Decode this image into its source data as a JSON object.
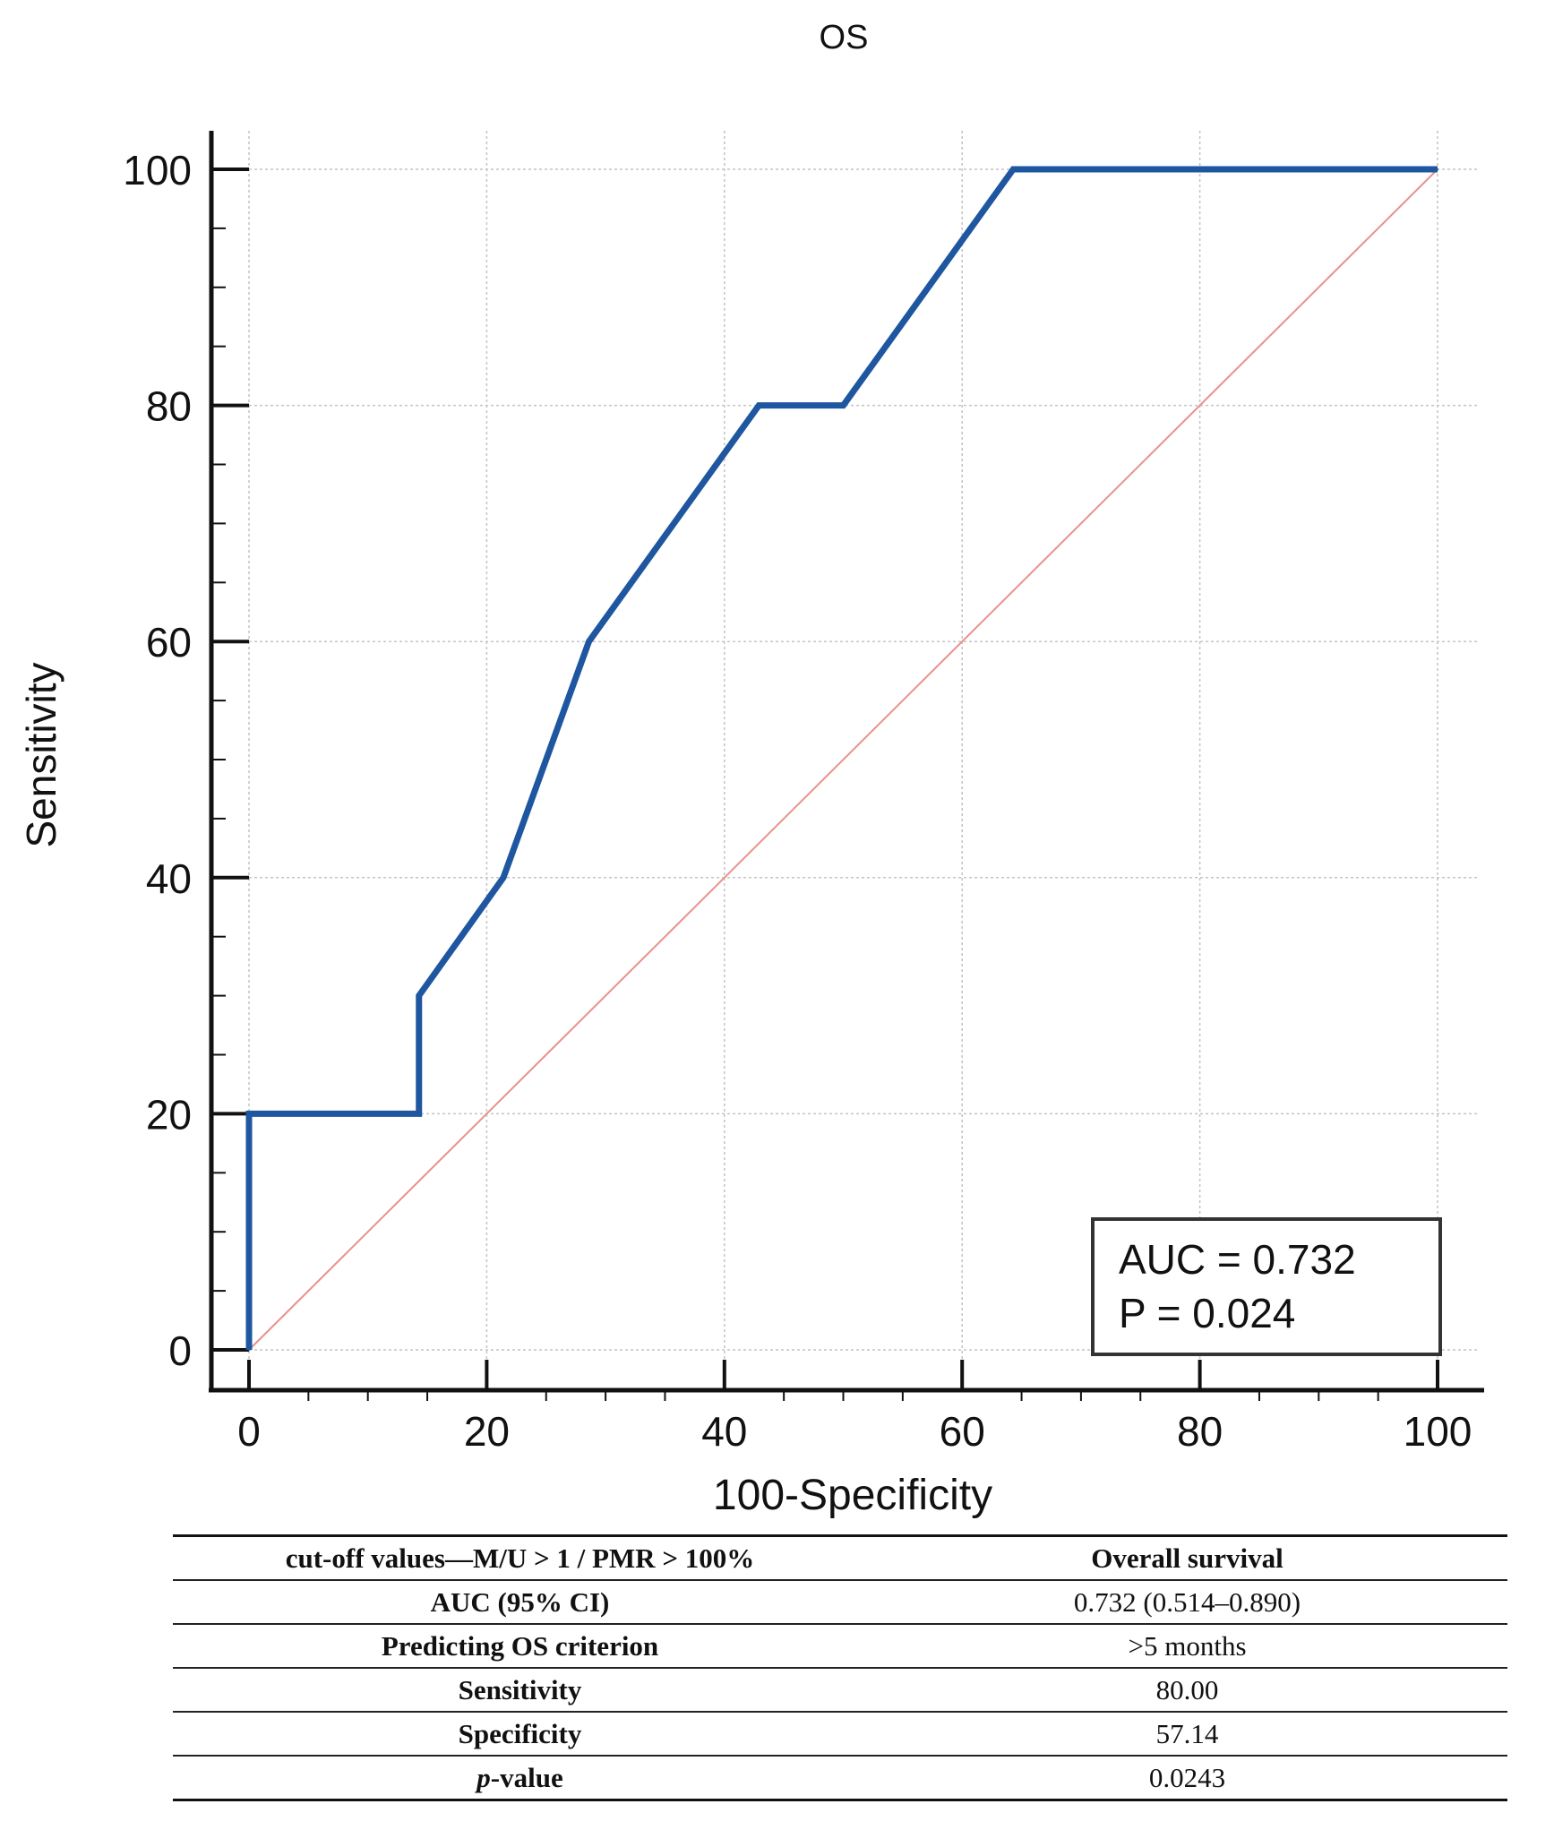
{
  "chart_data": {
    "type": "line",
    "title": "OS",
    "xlabel": "100-Specificity",
    "ylabel": "Sensitivity",
    "xlim": [
      0,
      100
    ],
    "ylim": [
      0,
      100
    ],
    "x_ticks": [
      0,
      20,
      40,
      60,
      80,
      100
    ],
    "y_ticks": [
      0,
      20,
      40,
      60,
      80,
      100
    ],
    "grid": true,
    "series": [
      {
        "name": "ROC curve",
        "color": "#1f56a0",
        "x": [
          0,
          0,
          14.3,
          14.3,
          21.4,
          28.6,
          42.9,
          50.0,
          64.3,
          100
        ],
        "y": [
          0,
          20,
          20,
          30,
          40,
          60,
          80,
          80,
          100,
          100
        ]
      },
      {
        "name": "Reference line",
        "color": "#e8928c",
        "x": [
          0,
          100
        ],
        "y": [
          0,
          100
        ]
      }
    ],
    "annotation": {
      "lines": [
        "AUC = 0.732",
        "P = 0.024"
      ],
      "placement": "bottom-right"
    }
  },
  "table": {
    "header": {
      "label": "cut-off values—M/U > 1 / PMR > 100%",
      "value": "Overall survival"
    },
    "rows": [
      {
        "label": "AUC  (95% CI)",
        "value": "0.732 (0.514–0.890)"
      },
      {
        "label": "Predicting OS criterion",
        "value": ">5 months"
      },
      {
        "label": "Sensitivity",
        "value": "80.00"
      },
      {
        "label": "Specificity",
        "value": "57.14"
      },
      {
        "label_italic": "p",
        "label": "-value",
        "value": "0.0243"
      }
    ]
  }
}
